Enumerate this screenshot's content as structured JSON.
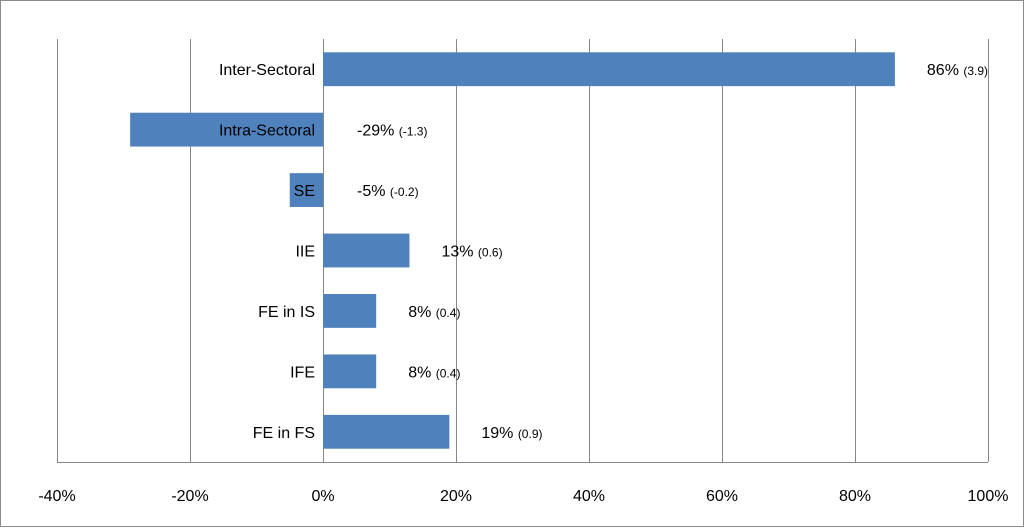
{
  "chart_data": {
    "type": "bar",
    "orientation": "horizontal",
    "categories": [
      "Inter-Sectoral",
      "Intra-Sectoral",
      "SE",
      "IIE",
      "FE in IS",
      "IFE",
      "FE in FS"
    ],
    "values": [
      86,
      -29,
      -5,
      13,
      8,
      8,
      19
    ],
    "value_labels": [
      "86%",
      "-29%",
      "-5%",
      "13%",
      "8%",
      "8%",
      "19%"
    ],
    "secondary_labels": [
      "(3.9)",
      "(-1.3)",
      "(-0.2)",
      "(0.6)",
      "(0.4)",
      "(0.4)",
      "(0.9)"
    ],
    "x_ticks": [
      -40,
      -20,
      0,
      20,
      40,
      60,
      80,
      100
    ],
    "x_tick_labels": [
      "-40%",
      "-20%",
      "0%",
      "20%",
      "40%",
      "60%",
      "80%",
      "100%"
    ],
    "xlim": [
      -40,
      100
    ],
    "grid": "vertical",
    "legend": "none",
    "title": "",
    "xlabel": "",
    "ylabel": "",
    "bar_color": "#4f81bd",
    "grid_color": "#868686"
  }
}
